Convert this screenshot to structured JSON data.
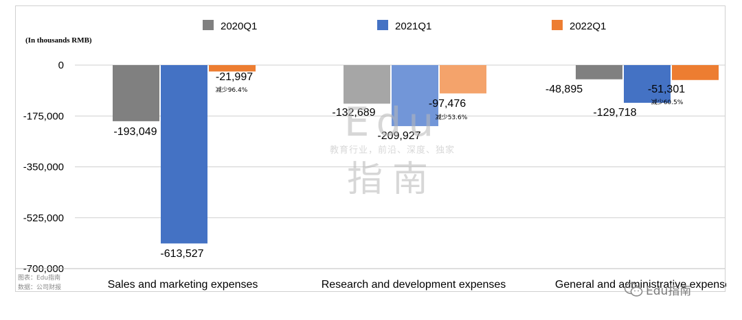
{
  "chart_data": {
    "type": "bar",
    "unit_label": "(In thousands RMB)",
    "categories": [
      "Sales and marketing expenses",
      "Research and development expenses",
      "General and administrative expenses"
    ],
    "series": [
      {
        "name": "2020Q1",
        "values": [
          -193049,
          -132689,
          -48895
        ],
        "color": "#808080"
      },
      {
        "name": "2021Q1",
        "values": [
          -613527,
          -209927,
          -129718
        ],
        "color": "#4472c4"
      },
      {
        "name": "2022Q1",
        "values": [
          -21997,
          -97476,
          -51301
        ],
        "color": "#ed7d31"
      }
    ],
    "value_labels": [
      [
        "-193,049",
        "-132,689",
        "-48,895"
      ],
      [
        "-613,527",
        "-209,927",
        "-129,718"
      ],
      [
        "-21,997",
        "-97,476",
        "-51,301"
      ]
    ],
    "annotations": [
      "减少96.4%",
      "减少53.6%",
      "减少60.5%"
    ],
    "yticks": [
      0,
      -175000,
      -350000,
      -525000,
      -700000
    ],
    "ytick_labels": [
      "0",
      "-175,000",
      "-350,000",
      "-525,000",
      "-700,000"
    ],
    "ylim": [
      -700000,
      0
    ],
    "legend_position": "top",
    "grid": true
  },
  "source": {
    "line1": "图表：Edu指南",
    "line2": "数据：公司财报"
  },
  "watermark": {
    "line1": "Edu",
    "line2": "教育行业，前沿、深度、独家",
    "line3": "指南"
  },
  "badge": {
    "text": "Edu指南"
  }
}
